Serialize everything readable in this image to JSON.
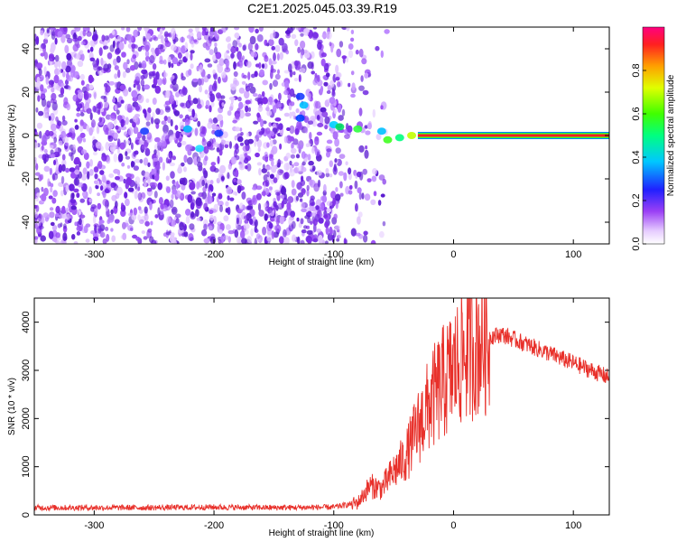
{
  "title": "C2E1.2025.045.03.39.R19",
  "chart_data": [
    {
      "type": "heatmap",
      "xlabel": "Height of straight line (km)",
      "ylabel": "Frequency (Hz)",
      "xlim": [
        -350,
        130
      ],
      "ylim": [
        -50,
        50
      ],
      "xticks": [
        -300,
        -200,
        -100,
        0,
        100
      ],
      "yticks": [
        -40,
        -20,
        0,
        20,
        40
      ],
      "colorbar": {
        "label": "Normalized spectral amplitude",
        "range": [
          0,
          1
        ],
        "ticks": [
          "0.0",
          "0.2",
          "0.4",
          "0.6",
          "0.8"
        ]
      },
      "description_series": {
        "noise_region_x": [
          -350,
          -65
        ],
        "signal_line_frequency_hz": 0,
        "signal_line_x": [
          -75,
          130
        ],
        "carrier_amplitude": 0.9
      }
    },
    {
      "type": "line",
      "xlabel": "Height of straight line (km)",
      "ylabel": "SNR (10 * v/v)",
      "xlim": [
        -350,
        130
      ],
      "ylim": [
        0,
        4500
      ],
      "xticks": [
        -300,
        -200,
        -100,
        0,
        100
      ],
      "yticks": [
        0,
        1000,
        2000,
        3000,
        4000
      ],
      "series": [
        {
          "name": "SNR",
          "color": "#e8302a",
          "x": [
            -350,
            -300,
            -250,
            -200,
            -150,
            -100,
            -80,
            -70,
            -60,
            -50,
            -40,
            -30,
            -20,
            -10,
            0,
            10,
            20,
            30,
            40,
            60,
            80,
            100,
            120,
            130
          ],
          "values": [
            150,
            150,
            150,
            160,
            150,
            160,
            250,
            600,
            550,
            900,
            1200,
            1800,
            2300,
            2700,
            3000,
            3400,
            3600,
            3700,
            3750,
            3550,
            3350,
            3150,
            2950,
            2850
          ]
        }
      ]
    }
  ]
}
